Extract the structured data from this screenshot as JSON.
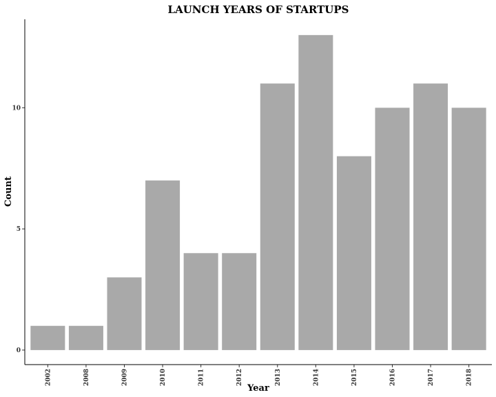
{
  "chart_data": {
    "type": "bar",
    "title": "LAUNCH YEARS OF STARTUPS",
    "xlabel": "Year",
    "ylabel": "Count",
    "categories": [
      "2002",
      "2008",
      "2009",
      "2010",
      "2011",
      "2012",
      "2013",
      "2014",
      "2015",
      "2016",
      "2017",
      "2018"
    ],
    "values": [
      1,
      1,
      3,
      7,
      4,
      4,
      11,
      13,
      8,
      10,
      11,
      10
    ],
    "yticks": [
      0,
      5,
      10
    ],
    "ylim": [
      -0.6,
      13.65
    ],
    "grid": false,
    "bar_color": "#a9a9a9"
  }
}
